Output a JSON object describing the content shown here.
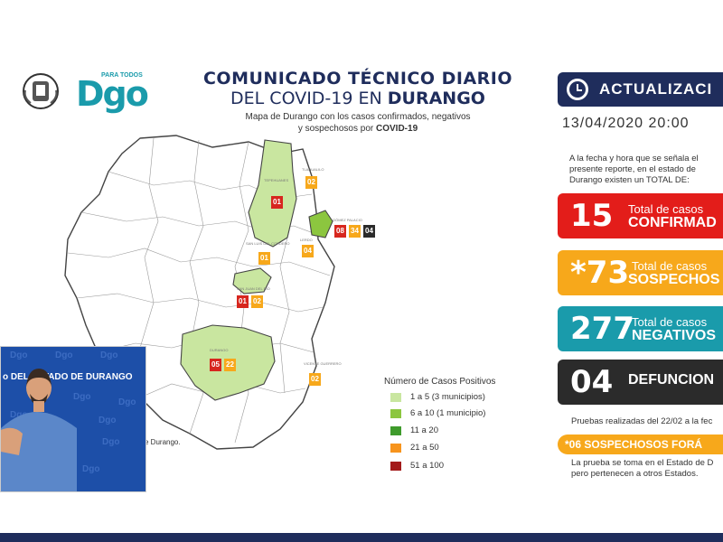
{
  "logos": {
    "para_todos": "PARA TODOS",
    "dgo": "Dgo"
  },
  "header": {
    "title_line1": "COMUNICADO TÉCNICO DIARIO",
    "title_line2_prefix": "DEL COVID-19 EN ",
    "title_line2_bold": "DURANGO",
    "subtitle_line1": "Mapa de Durango con los casos confirmados, negativos",
    "subtitle_line2_prefix": "y sospechosos por ",
    "subtitle_line2_bold": "COVID-19"
  },
  "update": {
    "label": "ACTUALIZACI",
    "datetime": "13/04/2020  20:00"
  },
  "intro_text": "A la fecha y hora que se señala el presente reporte, en el estado de Durango existen un TOTAL DE:",
  "stats": {
    "confirmed": {
      "value": "15",
      "line1": "Total de casos",
      "line2": "CONFIRMAD",
      "color": "#e31d1a"
    },
    "suspected": {
      "value": "*73",
      "line1": "Total de casos",
      "line2": "SOSPECHOS",
      "color": "#f7a81b"
    },
    "negative": {
      "value": "277",
      "line1": "Total de casos",
      "line2": "NEGATIVOS",
      "color": "#1a9bab"
    },
    "deaths": {
      "value": "04",
      "line1": "DEFUNCION",
      "color": "#2b2b2b"
    }
  },
  "tests_note": "Pruebas realizadas del 22/02 a la fec",
  "foraneos": "*06 SOSPECHOSOS FORÁ",
  "foraneos_note_line1": "La prueba se toma en el Estado de D",
  "foraneos_note_line2": "pero pertenecen a otros Estados.",
  "legend": {
    "title": "Número de Casos Positivos",
    "items": [
      {
        "label": "1 a 5    (3 municipios)",
        "color": "#c9e6a0"
      },
      {
        "label": "6 a 10   (1 municipio)",
        "color": "#8cc63f"
      },
      {
        "label": "11 a 20",
        "color": "#3f9b2c"
      },
      {
        "label": "21 a 50",
        "color": "#f7941d"
      },
      {
        "label": "51 a 100",
        "color": "#a31a1a"
      }
    ]
  },
  "map": {
    "footer": "e Durango.",
    "municipalities": [
      {
        "name": "TEPEHUANES",
        "badges": [
          {
            "value": "01",
            "color": "#d7261e"
          }
        ]
      },
      {
        "name": "TLAHUALILO",
        "badges": [
          {
            "value": "02",
            "color": "#f7a81b"
          }
        ]
      },
      {
        "name": "GÓMEZ PALACIO",
        "badges": [
          {
            "value": "08",
            "color": "#d7261e"
          },
          {
            "value": "34",
            "color": "#f7a81b"
          },
          {
            "value": "04",
            "color": "#2b2b2b"
          }
        ]
      },
      {
        "name": "LERDO",
        "badges": [
          {
            "value": "04",
            "color": "#f7a81b"
          }
        ]
      },
      {
        "name": "SAN LUIS DEL CORDERO",
        "badges": [
          {
            "value": "01",
            "color": "#f7a81b"
          }
        ]
      },
      {
        "name": "SAN JUAN DEL RÍO",
        "badges": [
          {
            "value": "01",
            "color": "#d7261e"
          },
          {
            "value": "02",
            "color": "#f7a81b"
          }
        ]
      },
      {
        "name": "DURANGO",
        "badges": [
          {
            "value": "05",
            "color": "#d7261e"
          },
          {
            "value": "22",
            "color": "#f7a81b"
          }
        ]
      },
      {
        "name": "VICENTE GUERRERO",
        "badges": [
          {
            "value": "02",
            "color": "#f7a81b"
          }
        ]
      }
    ]
  },
  "video": {
    "title": "o DEL ESTADO DE DURANGO",
    "watermark": "Dgo"
  }
}
